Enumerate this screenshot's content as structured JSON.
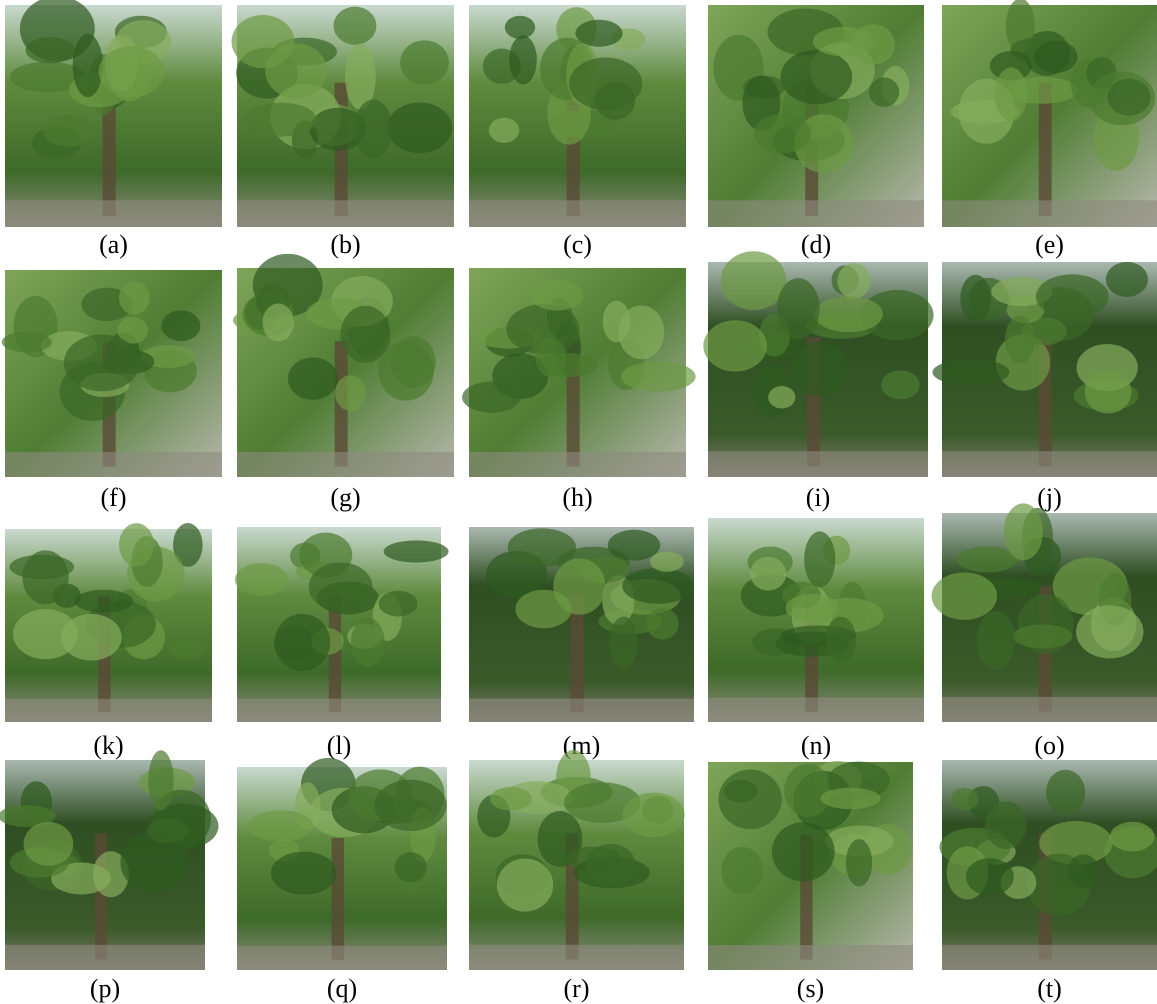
{
  "panels": [
    {
      "label": "(a)"
    },
    {
      "label": "(b)"
    },
    {
      "label": "(c)"
    },
    {
      "label": "(d)"
    },
    {
      "label": "(e)"
    },
    {
      "label": "(f)"
    },
    {
      "label": "(g)"
    },
    {
      "label": "(h)"
    },
    {
      "label": "(i)"
    },
    {
      "label": "(j)"
    },
    {
      "label": "(k)"
    },
    {
      "label": "(l)"
    },
    {
      "label": "(m)"
    },
    {
      "label": "(n)"
    },
    {
      "label": "(o)"
    },
    {
      "label": "(p)"
    },
    {
      "label": "(q)"
    },
    {
      "label": "(r)"
    },
    {
      "label": "(s)"
    },
    {
      "label": "(t)"
    }
  ]
}
